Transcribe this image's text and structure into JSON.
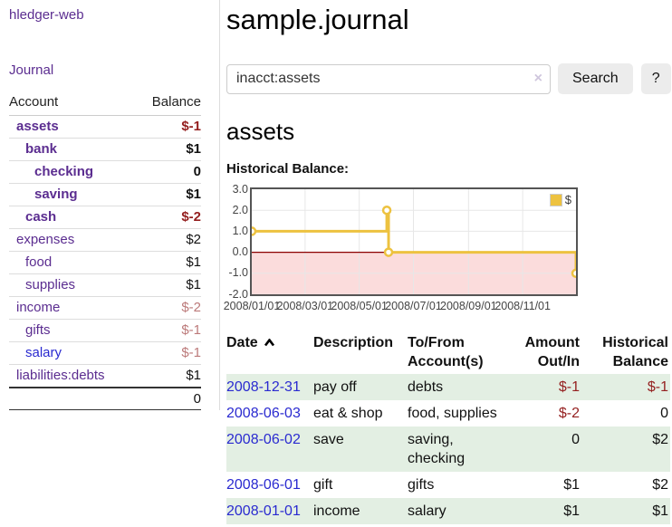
{
  "app_title": "hledger-web",
  "sidebar": {
    "journal_link": "Journal",
    "accounts": {
      "header_account": "Account",
      "header_balance": "Balance",
      "rows": [
        {
          "name": "assets",
          "balance": "$-1",
          "depth": 1,
          "bold": true,
          "negative": true
        },
        {
          "name": "bank",
          "balance": "$1",
          "depth": 2,
          "bold": true,
          "negative": false
        },
        {
          "name": "checking",
          "balance": "0",
          "depth": 3,
          "bold": true,
          "negative": false
        },
        {
          "name": "saving",
          "balance": "$1",
          "depth": 3,
          "bold": true,
          "negative": false
        },
        {
          "name": "cash",
          "balance": "$-2",
          "depth": 2,
          "bold": true,
          "negative": true
        },
        {
          "name": "expenses",
          "balance": "$2",
          "depth": 1,
          "bold": false,
          "negative": false
        },
        {
          "name": "food",
          "balance": "$1",
          "depth": 2,
          "bold": false,
          "negative": false
        },
        {
          "name": "supplies",
          "balance": "$1",
          "depth": 2,
          "bold": false,
          "negative": false
        },
        {
          "name": "income",
          "balance": "$-2",
          "depth": 1,
          "bold": false,
          "negative": true
        },
        {
          "name": "gifts",
          "balance": "$-1",
          "depth": 2,
          "bold": false,
          "negative": true
        },
        {
          "name": "salary",
          "balance": "$-1",
          "depth": 2,
          "bold": false,
          "negative": true,
          "blue": true
        },
        {
          "name": "liabilities:debts",
          "balance": "$1",
          "depth": 1,
          "bold": false,
          "negative": false
        }
      ],
      "total": "0"
    }
  },
  "main": {
    "title": "sample.journal",
    "search": {
      "value": "inacct:assets",
      "clear_glyph": "×",
      "clear_icon": "x-clear-icon",
      "search_button": "Search",
      "help_button": "?"
    },
    "account_title": "assets",
    "chart_label": "Historical Balance:"
  },
  "chart_data": {
    "type": "line",
    "step": true,
    "title": "Historical Balance",
    "legend": {
      "position": "top-right",
      "entries": [
        {
          "label": "$",
          "color": "#edc240"
        }
      ]
    },
    "x_range": [
      "2008-01-01",
      "2008-12-31"
    ],
    "ylim": [
      -2,
      3
    ],
    "grid": true,
    "y_ticks": [
      {
        "value": 3,
        "label": "3.0"
      },
      {
        "value": 2,
        "label": "2.0"
      },
      {
        "value": 1,
        "label": "1.0"
      },
      {
        "value": 0,
        "label": "0.0"
      },
      {
        "value": -1,
        "label": "-1.0"
      },
      {
        "value": -2,
        "label": "-2.0"
      }
    ],
    "x_ticks": [
      {
        "date": "2008-01-01",
        "label": "2008/01/01"
      },
      {
        "date": "2008-03-01",
        "label": "2008/03/01"
      },
      {
        "date": "2008-05-01",
        "label": "2008/05/01"
      },
      {
        "date": "2008-07-01",
        "label": "2008/07/01"
      },
      {
        "date": "2008-09-01",
        "label": "2008/09/01"
      },
      {
        "date": "2008-11-01",
        "label": "2008/11/01"
      }
    ],
    "series": [
      {
        "name": "$",
        "color": "#edc240",
        "points": [
          {
            "date": "2008-01-01",
            "value": 1
          },
          {
            "date": "2008-06-01",
            "value": 2
          },
          {
            "date": "2008-06-03",
            "value": 0
          },
          {
            "date": "2008-12-31",
            "value": -1
          }
        ]
      }
    ],
    "negative_region_color": "#fbdcdc",
    "zero_line_color": "#8b0000",
    "gridline_color": "#e7e7e7"
  },
  "register": {
    "columns": [
      "Date",
      "Description",
      "To/From Account(s)",
      "Amount Out/In",
      "Historical Balance"
    ],
    "sort": {
      "column": "Date",
      "direction": "ascending",
      "icon": "chevron-up-icon"
    },
    "rows": [
      {
        "date": "2008-12-31",
        "description": "pay off",
        "accounts": "debts",
        "amount": "$-1",
        "balance": "$-1"
      },
      {
        "date": "2008-06-03",
        "description": "eat & shop",
        "accounts": "food, supplies",
        "amount": "$-2",
        "balance": "0"
      },
      {
        "date": "2008-06-02",
        "description": "save",
        "accounts": "saving, checking",
        "amount": "0",
        "balance": "$2"
      },
      {
        "date": "2008-06-01",
        "description": "gift",
        "accounts": "gifts",
        "amount": "$1",
        "balance": "$2"
      },
      {
        "date": "2008-01-01",
        "description": "income",
        "accounts": "salary",
        "amount": "$1",
        "balance": "$1"
      }
    ]
  },
  "colors": {
    "purple_link": "#5b2d90",
    "blue_link": "#2a2ad0",
    "negative_strong": "#941f1f",
    "negative_muted": "#bc7a7a",
    "row_stripe_green": "#e3efe3",
    "chart_series_yellow": "#edc240",
    "chart_negative_bg": "#fbdcdc",
    "chart_zero_line": "#8b0000",
    "button_bg": "#ececec"
  }
}
